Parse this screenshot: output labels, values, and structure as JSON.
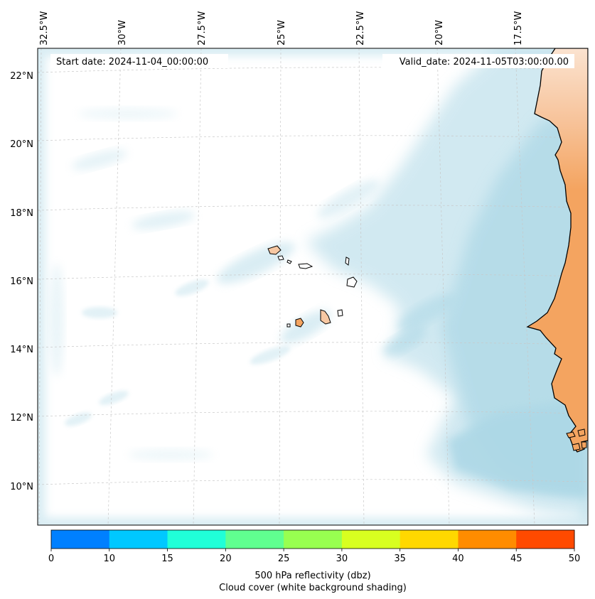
{
  "map": {
    "start_date": "Start date: 2024-11-04_00:00:00",
    "valid_date": "Valid_date: 2024-11-05T03:00:00.00",
    "longitude_labels": [
      "32.5°W",
      "30°W",
      "27.5°W",
      "25°W",
      "22.5°W",
      "20°W",
      "17.5°W"
    ],
    "latitude_labels": [
      "22°N",
      "20°N",
      "18°N",
      "16°N",
      "14°N",
      "12°N",
      "10°N"
    ],
    "colors": {
      "land": "#f4a460",
      "cloud": "#add8e6",
      "coast": "#000000",
      "grid": "#c8c8c8"
    }
  },
  "colorbar": {
    "ticks": [
      "0",
      "10",
      "15",
      "20",
      "25",
      "30",
      "35",
      "40",
      "45",
      "50"
    ],
    "colors": [
      "#0080ff",
      "#00c8ff",
      "#20ffd8",
      "#60ff90",
      "#98ff50",
      "#d8ff20",
      "#ffd800",
      "#ff8c00",
      "#ff4a00"
    ],
    "label_line1": "500 hPa reflectivity (dbz)",
    "label_line2": "Cloud cover (white background shading)"
  }
}
